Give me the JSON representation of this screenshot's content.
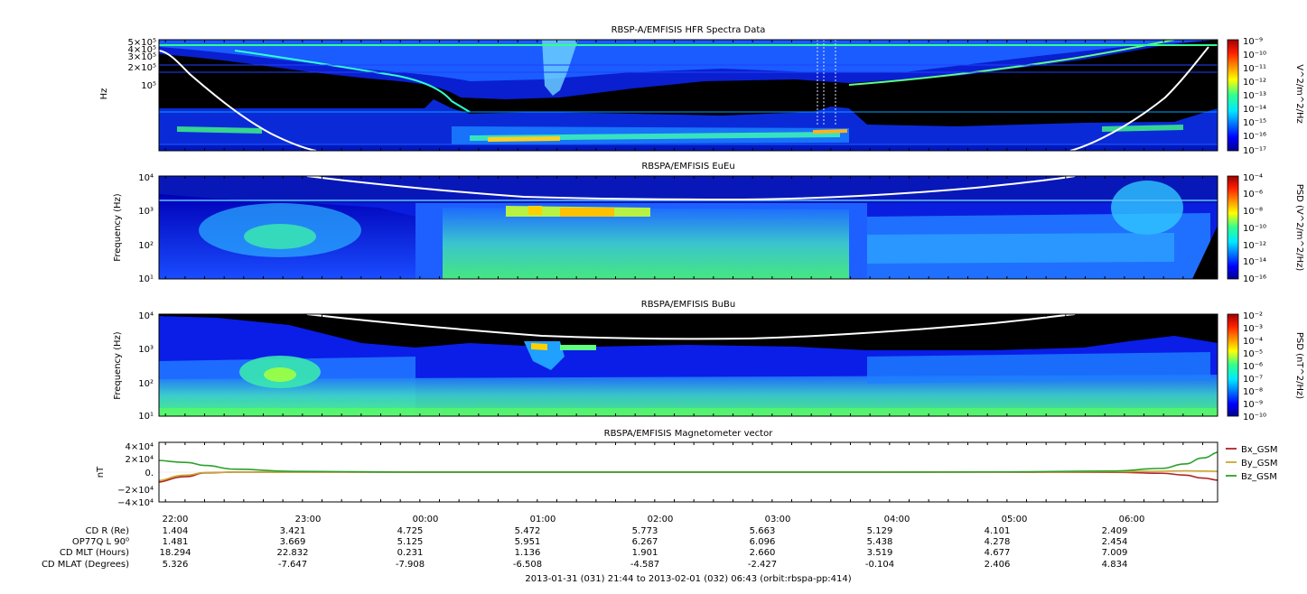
{
  "panels": [
    {
      "title": "RBSP-A/EMFISIS  HFR Spectra Data",
      "ylabel": "Hz",
      "ytick_labels": [
        "5×10⁵",
        "4×10⁵",
        "3×10⁵",
        "2×10⁵",
        "10⁵"
      ],
      "cbar_label": "V^2/m^2/Hz",
      "cbar_ticks": [
        "10⁻⁹",
        "10⁻¹⁰",
        "10⁻¹¹",
        "10⁻¹²",
        "10⁻¹³",
        "10⁻¹⁴",
        "10⁻¹⁵",
        "10⁻¹⁶",
        "10⁻¹⁷"
      ]
    },
    {
      "title": "RBSPA/EMFISIS  EuEu",
      "ylabel": "Frequency (Hz)",
      "ytick_labels": [
        "10⁴",
        "10³",
        "10²",
        "10¹"
      ],
      "cbar_label": "PSD (V^2/m^2/Hz)",
      "cbar_ticks": [
        "10⁻⁴",
        "10⁻⁶",
        "10⁻⁸",
        "10⁻¹⁰",
        "10⁻¹²",
        "10⁻¹⁴",
        "10⁻¹⁶"
      ]
    },
    {
      "title": "RBSPA/EMFISIS  BuBu",
      "ylabel": "Frequency (Hz)",
      "ytick_labels": [
        "10⁴",
        "10³",
        "10²",
        "10¹"
      ],
      "cbar_label": "PSD (nT^2/Hz)",
      "cbar_ticks": [
        "10⁻²",
        "10⁻³",
        "10⁻⁴",
        "10⁻⁵",
        "10⁻⁶",
        "10⁻⁷",
        "10⁻⁸",
        "10⁻⁹",
        "10⁻¹⁰"
      ]
    },
    {
      "title": "RBSPA/EMFISIS  Magnetometer vector",
      "ylabel": "nT",
      "ytick_labels": [
        "4×10⁴",
        "2×10⁴",
        "0.",
        "−2×10⁴",
        "−4×10⁴"
      ]
    }
  ],
  "chart_data": [
    {
      "type": "heatmap",
      "title": "RBSP-A/EMFISIS  HFR Spectra Data",
      "ylabel": "Hz",
      "y_scale": "log",
      "ylim": [
        10000,
        500000
      ],
      "colorbar": {
        "label": "V^2/m^2/Hz",
        "range": [
          1e-17,
          1e-09
        ],
        "scale": "log"
      },
      "overlay_line": "white curve (plasma/cyclotron frequency trace) rising at both ends"
    },
    {
      "type": "heatmap",
      "title": "RBSPA/EMFISIS  EuEu",
      "ylabel": "Frequency (Hz)",
      "y_scale": "log",
      "ylim": [
        10,
        10000
      ],
      "colorbar": {
        "label": "PSD (V^2/m^2/Hz)",
        "range": [
          1e-16,
          0.0001
        ],
        "scale": "log"
      }
    },
    {
      "type": "heatmap",
      "title": "RBSPA/EMFISIS  BuBu",
      "ylabel": "Frequency (Hz)",
      "y_scale": "log",
      "ylim": [
        10,
        10000
      ],
      "colorbar": {
        "label": "PSD (nT^2/Hz)",
        "range": [
          1e-10,
          0.01
        ],
        "scale": "log"
      }
    },
    {
      "type": "line",
      "title": "RBSPA/EMFISIS  Magnetometer vector",
      "ylabel": "nT",
      "ylim": [
        -40000,
        40000
      ],
      "x": [
        -0.2,
        0.1,
        0.25,
        0.5,
        1.0,
        2.0,
        4.0,
        6.0,
        7.0,
        8.0,
        8.4,
        8.6,
        8.75,
        8.9,
        9.0
      ],
      "x_unit": "hours after 22:00",
      "series": [
        {
          "name": "Bx_GSM",
          "color": "#b22222",
          "values": [
            -14000,
            -6000,
            -1000,
            0,
            0,
            0,
            0,
            0,
            0,
            -300,
            -1500,
            -4000,
            -8000,
            -11000,
            -9000
          ]
        },
        {
          "name": "By_GSM",
          "color": "#c8a832",
          "values": [
            -12000,
            -4000,
            -500,
            0,
            0,
            0,
            0,
            0,
            0,
            500,
            1200,
            1800,
            1500,
            1000,
            800
          ]
        },
        {
          "name": "Bz_GSM",
          "color": "#2ca02c",
          "values": [
            16000,
            13000,
            9000,
            4000,
            1000,
            0,
            0,
            0,
            300,
            1500,
            5000,
            11000,
            19000,
            27000,
            32000
          ]
        }
      ],
      "legend": "right"
    }
  ],
  "xticks": [
    "22:00",
    "23:00",
    "00:00",
    "01:00",
    "02:00",
    "03:00",
    "04:00",
    "05:00",
    "06:00"
  ],
  "ephemeris": {
    "labels": [
      "CD R (Re)",
      "OP77Q L 90⁰",
      "CD MLT (Hours)",
      "CD MLAT (Degrees)"
    ],
    "rows": [
      [
        "1.404",
        "3.421",
        "4.725",
        "5.472",
        "5.773",
        "5.663",
        "5.129",
        "4.101",
        "2.409"
      ],
      [
        "1.481",
        "3.669",
        "5.125",
        "5.951",
        "6.267",
        "6.096",
        "5.438",
        "4.278",
        "2.454"
      ],
      [
        "18.294",
        "22.832",
        "0.231",
        "1.136",
        "1.901",
        "2.660",
        "3.519",
        "4.677",
        "7.009"
      ],
      [
        "5.326",
        "-7.647",
        "-7.908",
        "-6.508",
        "-4.587",
        "-2.427",
        "-0.104",
        "2.406",
        "4.834"
      ]
    ]
  },
  "footer": "2013-01-31 (031) 21:44 to 2013-02-01 (032) 06:43 (orbit:rbspa-pp:414)"
}
